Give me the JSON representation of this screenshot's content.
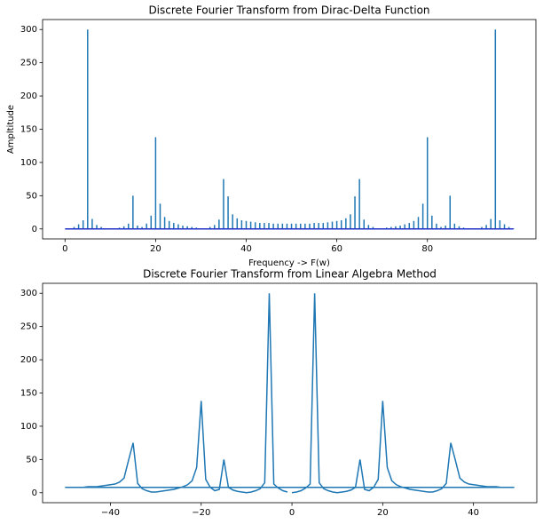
{
  "chart_data": [
    {
      "type": "stem",
      "title": "Discrete Fourier Transform from Dirac-Delta Function",
      "xlabel": "Frequency -> F(w)",
      "ylabel": "Ampltitude",
      "color": "#1f77b4",
      "baseline_color": "#2230c8",
      "x": [
        0,
        1,
        2,
        3,
        4,
        5,
        6,
        7,
        8,
        9,
        10,
        11,
        12,
        13,
        14,
        15,
        16,
        17,
        18,
        19,
        20,
        21,
        22,
        23,
        24,
        25,
        26,
        27,
        28,
        29,
        30,
        31,
        32,
        33,
        34,
        35,
        36,
        37,
        38,
        39,
        40,
        41,
        42,
        43,
        44,
        45,
        46,
        47,
        48,
        49,
        50,
        51,
        52,
        53,
        54,
        55,
        56,
        57,
        58,
        59,
        60,
        61,
        62,
        63,
        64,
        65,
        66,
        67,
        68,
        69,
        70,
        71,
        72,
        73,
        74,
        75,
        76,
        77,
        78,
        79,
        80,
        81,
        82,
        83,
        84,
        85,
        86,
        87,
        88,
        89,
        90,
        91,
        92,
        93,
        94,
        95,
        96,
        97,
        98,
        99
      ],
      "values": [
        0,
        1,
        3,
        7,
        13,
        300,
        15,
        6,
        3,
        1,
        0,
        1,
        2,
        4,
        8,
        50,
        5,
        3,
        8,
        20,
        138,
        38,
        18,
        12,
        9,
        7,
        5,
        4,
        3,
        2,
        1,
        1,
        3,
        6,
        14,
        75,
        49,
        22,
        16,
        13,
        12,
        11,
        10,
        9,
        9,
        9,
        8,
        8,
        8,
        8,
        8,
        8,
        8,
        8,
        8,
        9,
        9,
        9,
        10,
        11,
        12,
        13,
        16,
        22,
        49,
        75,
        14,
        6,
        3,
        1,
        1,
        2,
        3,
        4,
        5,
        7,
        9,
        12,
        18,
        38,
        138,
        20,
        8,
        3,
        5,
        50,
        8,
        4,
        2,
        1,
        0,
        1,
        3,
        6,
        15,
        300,
        13,
        7,
        3,
        1
      ],
      "xlim": [
        -4.95,
        103.95
      ],
      "ylim": [
        -15,
        315
      ],
      "xticks": [
        0,
        20,
        40,
        60,
        80
      ],
      "yticks": [
        0,
        50,
        100,
        150,
        200,
        250,
        300
      ]
    },
    {
      "type": "line",
      "title": "Discrete Fourier Transform from Linear Algebra Method",
      "color": "#1f77b4",
      "x": [
        0,
        1,
        2,
        3,
        4,
        5,
        6,
        7,
        8,
        9,
        10,
        11,
        12,
        13,
        14,
        15,
        16,
        17,
        18,
        19,
        20,
        21,
        22,
        23,
        24,
        25,
        26,
        27,
        28,
        29,
        30,
        31,
        32,
        33,
        34,
        35,
        36,
        37,
        38,
        39,
        40,
        41,
        42,
        43,
        44,
        45,
        46,
        47,
        48,
        49,
        -50,
        -49,
        -48,
        -47,
        -46,
        -45,
        -44,
        -43,
        -42,
        -41,
        -40,
        -39,
        -38,
        -37,
        -36,
        -35,
        -34,
        -33,
        -32,
        -31,
        -30,
        -29,
        -28,
        -27,
        -26,
        -25,
        -24,
        -23,
        -22,
        -21,
        -20,
        -19,
        -18,
        -17,
        -16,
        -15,
        -14,
        -13,
        -12,
        -11,
        -10,
        -9,
        -8,
        -7,
        -6,
        -5,
        -4,
        -3,
        -2,
        -1
      ],
      "values": [
        0,
        1,
        3,
        7,
        13,
        300,
        15,
        6,
        3,
        1,
        0,
        1,
        2,
        4,
        8,
        50,
        5,
        3,
        8,
        20,
        138,
        38,
        18,
        12,
        9,
        7,
        5,
        4,
        3,
        2,
        1,
        1,
        3,
        6,
        14,
        75,
        49,
        22,
        16,
        13,
        12,
        11,
        10,
        9,
        9,
        9,
        8,
        8,
        8,
        8,
        8,
        8,
        8,
        8,
        8,
        9,
        9,
        9,
        10,
        11,
        12,
        13,
        16,
        22,
        49,
        75,
        14,
        6,
        3,
        1,
        1,
        2,
        3,
        4,
        5,
        7,
        9,
        12,
        18,
        38,
        138,
        20,
        8,
        3,
        5,
        50,
        8,
        4,
        2,
        1,
        0,
        1,
        3,
        6,
        15,
        300,
        13,
        7,
        3,
        1
      ],
      "xlim": [
        -54.95,
        53.95
      ],
      "ylim": [
        -15,
        315
      ],
      "xticks": [
        {
          "value": -40,
          "label": "−40"
        },
        {
          "value": -20,
          "label": "−20"
        },
        0,
        20,
        40
      ],
      "yticks": [
        0,
        50,
        100,
        150,
        200,
        250,
        300
      ]
    }
  ]
}
